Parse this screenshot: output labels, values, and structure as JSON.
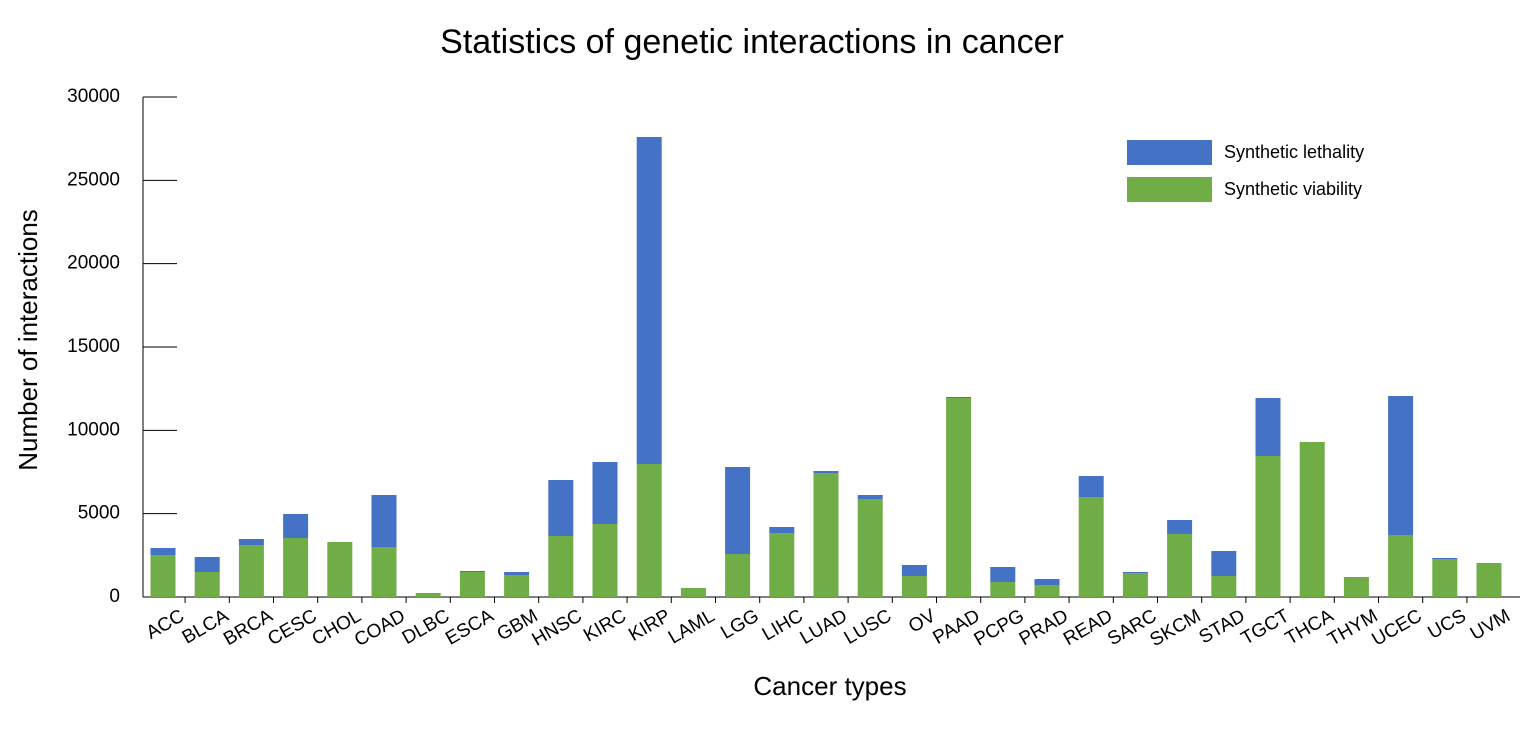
{
  "chart_data": {
    "type": "stacked_bar",
    "title": "Statistics of genetic interactions in cancer",
    "x_label": "Cancer types",
    "y_label": "Number of interactions",
    "categories": [
      "ACC",
      "BLCA",
      "BRCA",
      "CESC",
      "CHOL",
      "COAD",
      "DLBC",
      "ESCA",
      "GBM",
      "HNSC",
      "KIRC",
      "KIRP",
      "LAML",
      "LGG",
      "LIHC",
      "LUAD",
      "LUSC",
      "OV",
      "PAAD",
      "PCPG",
      "PRAD",
      "READ",
      "SARC",
      "SKCM",
      "STAD",
      "TGCT",
      "THCA",
      "THYM",
      "UCEC",
      "UCS",
      "UVM"
    ],
    "series": [
      {
        "name": "Synthetic viability",
        "color": "#70ad47",
        "values": [
          2520,
          1500,
          3120,
          3540,
          3300,
          3000,
          240,
          1500,
          1320,
          3660,
          4380,
          7980,
          540,
          2580,
          3840,
          7440,
          5880,
          1260,
          11940,
          900,
          720,
          6000,
          1440,
          3780,
          1260,
          8460,
          9300,
          1200,
          3720,
          2280,
          2040
        ]
      },
      {
        "name": "Synthetic lethality",
        "color": "#4472c4",
        "values": [
          420,
          900,
          360,
          1440,
          0,
          3120,
          0,
          60,
          180,
          3360,
          3720,
          19620,
          0,
          5220,
          360,
          120,
          240,
          660,
          60,
          900,
          360,
          1260,
          60,
          840,
          1500,
          3480,
          0,
          0,
          8340,
          60,
          0
        ]
      }
    ],
    "ylim": [
      0,
      30000
    ],
    "yticks": [
      0,
      5000,
      10000,
      15000,
      20000,
      25000,
      30000
    ]
  }
}
